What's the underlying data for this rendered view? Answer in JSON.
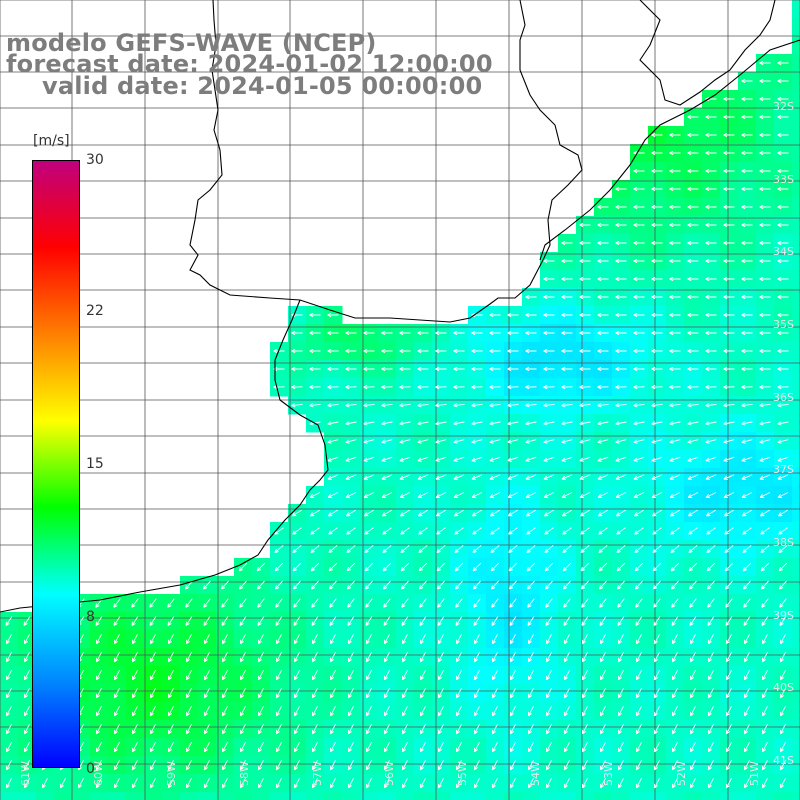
{
  "titles": {
    "model": "modelo GEFS-WAVE (NCEP)",
    "forecast": "forecast date: 2024-01-02 12:00:00",
    "valid": "valid date: 2024-01-05 00:00:00"
  },
  "colorbar": {
    "unit": "[m/s]",
    "min": 0,
    "max": 30,
    "ticks": [
      {
        "value": 30,
        "label": "30"
      },
      {
        "value": 22,
        "label": "22"
      },
      {
        "value": 15,
        "label": "15"
      },
      {
        "value": 8,
        "label": "8"
      },
      {
        "value": 0,
        "label": "0"
      }
    ],
    "colors": [
      "#0000ff",
      "#0088ff",
      "#00ffff",
      "#00ff00",
      "#ffff00",
      "#ff7f00",
      "#ff0000",
      "#c0007f"
    ]
  },
  "map": {
    "lon_range": [
      -61,
      -50
    ],
    "lat_range": [
      -42,
      -30
    ],
    "field": "wind speed",
    "arrow_color": "#ffffff",
    "grid_color": "#555555",
    "coast_color": "#000000",
    "lat_labels": [
      "32S",
      "33S",
      "34S",
      "35S",
      "36S",
      "37S",
      "38S",
      "39S",
      "40S",
      "41S"
    ],
    "lon_labels": [
      "61W",
      "60W",
      "59W",
      "58W",
      "57W",
      "56W",
      "55W",
      "54W",
      "53W",
      "52W",
      "51W"
    ]
  }
}
